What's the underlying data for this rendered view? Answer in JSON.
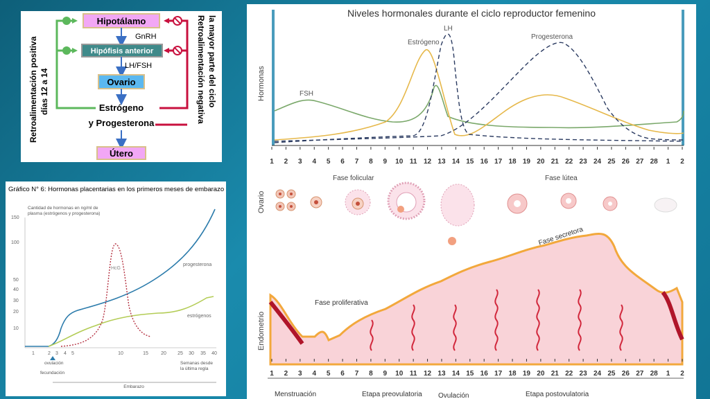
{
  "hormone_feedback": {
    "hypothalamus": "Hipotálamo",
    "gnrh": "GnRH",
    "anterior_pituitary": "Hipófisis anterior",
    "lh_fsh": "LH/FSH",
    "ovary": "Ovario",
    "estrogen": "Estrógeno",
    "progesterone": "y Progesterona",
    "uterus": "Útero",
    "positive_feedback_line1": "Retroalimentación positiva",
    "positive_feedback_line2": "días 12 a 14",
    "negative_feedback_line1": "Retroalimentación negativa",
    "negative_feedback_line2": "la mayor parte del ciclo",
    "colors": {
      "positive": "#5cb85c",
      "negative": "#c8103e",
      "hypothalamus_box": "#f2a7f5",
      "pituitary_box": "#3f8a8a",
      "ovary_box": "#5bb8f0",
      "uterus_box": "#f2a7f5"
    }
  },
  "placental_chart": {
    "title": "Gráfico N° 6: Hormonas placentarias en los primeros meses de embarazo",
    "ylabel_line1": "Cantidad de hormonas en ng/ml de",
    "ylabel_line2": "plasma (estrógenos y progesterona)",
    "yticks": [
      "150",
      "100",
      "50",
      "40",
      "30",
      "20",
      "10"
    ],
    "xticks": [
      "1",
      "2",
      "3",
      "4",
      "5",
      "10",
      "15",
      "20",
      "25",
      "30",
      "35",
      "40"
    ],
    "label_hcg": "HcG",
    "label_progesterone": "progesterona",
    "label_estrogens": "estrógenos",
    "xlabel_line1": "Semanas desde",
    "xlabel_line2": "la última regla",
    "ovulation": "ovulación",
    "fertilization": "fecundación",
    "pregnancy": "Embarazo"
  },
  "cycle_chart": {
    "title": "Niveles hormonales durante el ciclo reproductor femenino",
    "ylabel_hormones": "Hormonas",
    "label_fsh": "FSH",
    "label_estrogen": "Estrógeno",
    "label_lh": "LH",
    "label_progesterone": "Progesterona",
    "day_ticks": [
      "1",
      "2",
      "3",
      "4",
      "5",
      "6",
      "7",
      "8",
      "9",
      "10",
      "11",
      "12",
      "13",
      "14",
      "15",
      "16",
      "17",
      "18",
      "19",
      "20",
      "21",
      "22",
      "23",
      "24",
      "25",
      "26",
      "27",
      "28",
      "1",
      "2"
    ],
    "ylabel_ovary": "Ovario",
    "follicular_phase": "Fase folicular",
    "luteal_phase": "Fase lútea",
    "ylabel_endometrium": "Endometrio",
    "proliferative_phase": "Fase proliferativa",
    "secretory_phase": "Fase secretora",
    "stage_menstruation": "Menstruación",
    "stage_preovulatory": "Etapa preovulatoria",
    "stage_ovulation": "Ovulación",
    "stage_postovulatory": "Etapa postovulatoria",
    "colors": {
      "fsh": "#7aa86a",
      "estrogen": "#e6b84a",
      "lh": "#2a3a60",
      "progesterone": "#2a3a60"
    }
  }
}
